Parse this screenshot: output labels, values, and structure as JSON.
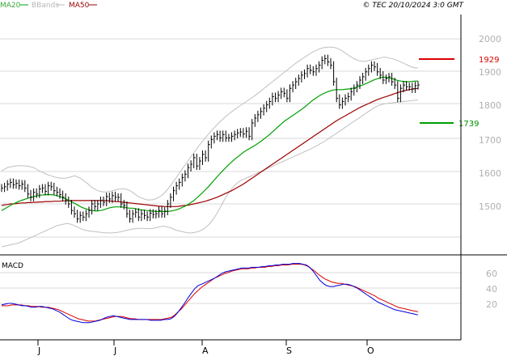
{
  "legend": [
    {
      "label": "MA20",
      "color": "#00a000"
    },
    {
      "label": "BBands",
      "color": "#b8b8b8"
    },
    {
      "label": "MA50",
      "color": "#9b0000"
    }
  ],
  "copyright": "© TEC 20/10/2024 3:0 GMT",
  "colors": {
    "price": "#000000",
    "ma20": "#00a000",
    "bbands": "#c0c0c0",
    "ma50": "#9b0000",
    "macd": "#0000dd",
    "signal": "#dd0000",
    "grid": "#d8d8d8",
    "resistance": "#dd0000",
    "support": "#00a000",
    "axis_text": "#b0b0b0",
    "resistance_text": "#dd0000",
    "support_text": "#009000"
  },
  "price_panel": {
    "yticks": [
      "2000",
      "1900",
      "1800",
      "1700",
      "1600",
      "1500"
    ],
    "resistance": {
      "value": 1929,
      "label": "1929"
    },
    "support": {
      "value": 1739,
      "label": "1739"
    }
  },
  "macd_panel": {
    "title": "MACD",
    "yticks": [
      "60",
      "40",
      "20"
    ]
  },
  "x_labels": [
    "J",
    "J",
    "A",
    "S",
    "O"
  ],
  "chart_data": [
    {
      "type": "ohlc",
      "ylim": [
        1400,
        2030
      ],
      "series": [
        {
          "name": "Price",
          "values": [
            1548,
            1552,
            1560,
            1565,
            1558,
            1562,
            1555,
            1560,
            1548,
            1530,
            1520,
            1535,
            1530,
            1545,
            1548,
            1538,
            1555,
            1552,
            1540,
            1535,
            1528,
            1520,
            1510,
            1500,
            1480,
            1470,
            1455,
            1465,
            1460,
            1470,
            1480,
            1500,
            1492,
            1500,
            1510,
            1505,
            1522,
            1515,
            1525,
            1520,
            1520,
            1500,
            1495,
            1470,
            1455,
            1470,
            1475,
            1460,
            1470,
            1465,
            1460,
            1472,
            1468,
            1470,
            1480,
            1470,
            1478,
            1500,
            1520,
            1540,
            1555,
            1565,
            1580,
            1590,
            1610,
            1620,
            1640,
            1615,
            1630,
            1650,
            1640,
            1680,
            1695,
            1705,
            1710,
            1700,
            1710,
            1700,
            1700,
            1705,
            1710,
            1715,
            1718,
            1712,
            1720,
            1705,
            1745,
            1760,
            1770,
            1780,
            1790,
            1800,
            1810,
            1825,
            1820,
            1830,
            1840,
            1835,
            1820,
            1850,
            1860,
            1870,
            1880,
            1890,
            1895,
            1910,
            1905,
            1900,
            1910,
            1920,
            1935,
            1940,
            1930,
            1920,
            1870,
            1820,
            1800,
            1810,
            1820,
            1825,
            1840,
            1850,
            1860,
            1875,
            1885,
            1900,
            1910,
            1920,
            1915,
            1900,
            1890,
            1875,
            1880,
            1885,
            1870,
            1860,
            1820,
            1850,
            1860,
            1855,
            1855,
            1848,
            1858,
            1860
          ]
        },
        {
          "name": "MA20",
          "values": [
            1480,
            1485,
            1490,
            1495,
            1500,
            1504,
            1508,
            1511,
            1514,
            1517,
            1520,
            1522,
            1524,
            1526,
            1527,
            1528,
            1528,
            1528,
            1527,
            1525,
            1522,
            1519,
            1515,
            1511,
            1506,
            1502,
            1497,
            1492,
            1488,
            1485,
            1482,
            1480,
            1479,
            1479,
            1480,
            1482,
            1485,
            1488,
            1490,
            1491,
            1491,
            1491,
            1490,
            1488,
            1487,
            1487,
            1485,
            1483,
            1482,
            1481,
            1480,
            1479,
            1478,
            1477,
            1477,
            1477,
            1477,
            1477,
            1478,
            1480,
            1482,
            1485,
            1489,
            1493,
            1498,
            1504,
            1510,
            1518,
            1526,
            1534,
            1543,
            1552,
            1562,
            1572,
            1582,
            1592,
            1601,
            1610,
            1619,
            1627,
            1635,
            1642,
            1649,
            1656,
            1662,
            1667,
            1672,
            1677,
            1683,
            1689,
            1696,
            1703,
            1710,
            1718,
            1726,
            1734,
            1742,
            1750,
            1756,
            1762,
            1768,
            1774,
            1780,
            1786,
            1793,
            1800,
            1808,
            1815,
            1821,
            1827,
            1832,
            1836,
            1840,
            1843,
            1845,
            1846,
            1846,
            1846,
            1847,
            1848,
            1849,
            1851,
            1854,
            1857,
            1860,
            1864,
            1868,
            1872,
            1876,
            1879,
            1882,
            1884,
            1883,
            1882,
            1880,
            1877,
            1874,
            1872,
            1871,
            1870,
            1870,
            1871,
            1872,
            1872
          ]
        },
        {
          "name": "MA50",
          "values": [
            1495,
            1497,
            1498,
            1500,
            1500,
            1501,
            1502,
            1503,
            1503,
            1504,
            1504,
            1505,
            1505,
            1506,
            1506,
            1507,
            1507,
            1507,
            1508,
            1508,
            1508,
            1509,
            1509,
            1510,
            1510,
            1510,
            1510,
            1510,
            1510,
            1510,
            1510,
            1510,
            1510,
            1510,
            1510,
            1510,
            1510,
            1509,
            1508,
            1507,
            1507,
            1506,
            1505,
            1504,
            1503,
            1502,
            1501,
            1500,
            1499,
            1498,
            1497,
            1496,
            1495,
            1494,
            1493,
            1493,
            1492,
            1492,
            1492,
            1492,
            1492,
            1493,
            1494,
            1495,
            1496,
            1498,
            1500,
            1502,
            1504,
            1506,
            1508,
            1511,
            1514,
            1517,
            1520,
            1524,
            1528,
            1532,
            1536,
            1540,
            1545,
            1550,
            1555,
            1560,
            1566,
            1572,
            1578,
            1584,
            1590,
            1596,
            1602,
            1608,
            1614,
            1620,
            1626,
            1632,
            1638,
            1644,
            1650,
            1656,
            1662,
            1668,
            1674,
            1680,
            1686,
            1692,
            1698,
            1704,
            1710,
            1716,
            1722,
            1728,
            1734,
            1740,
            1746,
            1752,
            1757,
            1762,
            1767,
            1772,
            1777,
            1782,
            1787,
            1792,
            1796,
            1800,
            1804,
            1808,
            1812,
            1816,
            1819,
            1822,
            1825,
            1828,
            1831,
            1834,
            1837,
            1840,
            1842,
            1844,
            1846,
            1848,
            1849,
            1850
          ]
        },
        {
          "name": "BBands upper",
          "values": [
            1600,
            1605,
            1610,
            1612,
            1614,
            1615,
            1616,
            1616,
            1615,
            1614,
            1612,
            1610,
            1605,
            1600,
            1596,
            1592,
            1588,
            1585,
            1582,
            1580,
            1578,
            1578,
            1578,
            1580,
            1582,
            1585,
            1582,
            1578,
            1572,
            1565,
            1558,
            1550,
            1545,
            1540,
            1538,
            1536,
            1536,
            1538,
            1540,
            1542,
            1544,
            1546,
            1546,
            1544,
            1540,
            1535,
            1528,
            1522,
            1518,
            1515,
            1512,
            1512,
            1513,
            1516,
            1520,
            1526,
            1534,
            1544,
            1556,
            1568,
            1580,
            1593,
            1606,
            1618,
            1630,
            1643,
            1655,
            1667,
            1679,
            1690,
            1701,
            1711,
            1721,
            1731,
            1740,
            1749,
            1757,
            1765,
            1772,
            1779,
            1786,
            1792,
            1798,
            1804,
            1810,
            1816,
            1822,
            1828,
            1835,
            1842,
            1849,
            1856,
            1863,
            1870,
            1877,
            1884,
            1891,
            1898,
            1905,
            1912,
            1919,
            1926,
            1932,
            1938,
            1944,
            1950,
            1956,
            1961,
            1965,
            1969,
            1972,
            1974,
            1975,
            1975,
            1974,
            1972,
            1968,
            1963,
            1957,
            1951,
            1945,
            1940,
            1936,
            1933,
            1932,
            1932,
            1934,
            1936,
            1938,
            1940,
            1942,
            1944,
            1944,
            1942,
            1940,
            1938,
            1934,
            1930,
            1926,
            1922,
            1918,
            1914,
            1912,
            1912
          ]
        },
        {
          "name": "BBands lower",
          "values": [
            1370,
            1372,
            1374,
            1376,
            1378,
            1380,
            1382,
            1386,
            1390,
            1394,
            1398,
            1402,
            1406,
            1410,
            1414,
            1418,
            1422,
            1426,
            1430,
            1434,
            1436,
            1438,
            1440,
            1440,
            1438,
            1434,
            1430,
            1426,
            1422,
            1420,
            1418,
            1417,
            1416,
            1415,
            1414,
            1413,
            1412,
            1412,
            1412,
            1413,
            1414,
            1416,
            1418,
            1420,
            1422,
            1424,
            1425,
            1426,
            1426,
            1426,
            1425,
            1425,
            1426,
            1428,
            1430,
            1432,
            1432,
            1430,
            1428,
            1424,
            1420,
            1418,
            1416,
            1414,
            1412,
            1412,
            1413,
            1415,
            1418,
            1422,
            1428,
            1436,
            1446,
            1458,
            1472,
            1488,
            1504,
            1520,
            1534,
            1546,
            1556,
            1564,
            1570,
            1574,
            1578,
            1582,
            1586,
            1590,
            1594,
            1598,
            1602,
            1606,
            1610,
            1614,
            1618,
            1622,
            1626,
            1630,
            1634,
            1638,
            1642,
            1646,
            1650,
            1654,
            1658,
            1662,
            1666,
            1670,
            1675,
            1680,
            1685,
            1690,
            1696,
            1702,
            1708,
            1714,
            1720,
            1726,
            1732,
            1738,
            1744,
            1750,
            1756,
            1762,
            1768,
            1774,
            1780,
            1786,
            1792,
            1796,
            1800,
            1802,
            1804,
            1805,
            1806,
            1807,
            1808,
            1809,
            1810,
            1811,
            1812,
            1813,
            1814,
            1815
          ]
        }
      ]
    },
    {
      "type": "line",
      "ylim": [
        -20,
        80
      ],
      "series": [
        {
          "name": "MACD",
          "values": [
            18,
            19,
            20,
            20,
            19,
            18,
            17,
            17,
            16,
            15,
            15,
            16,
            16,
            15,
            14,
            13,
            11,
            9,
            6,
            3,
            0,
            -2,
            -3,
            -4,
            -5,
            -5,
            -5,
            -4,
            -3,
            -2,
            0,
            2,
            3,
            4,
            3,
            2,
            1,
            0,
            -1,
            -1,
            -1,
            -1,
            -1,
            -1,
            -2,
            -2,
            -2,
            -2,
            -1,
            -1,
            0,
            3,
            8,
            14,
            20,
            27,
            33,
            39,
            43,
            45,
            47,
            49,
            51,
            53,
            56,
            59,
            61,
            62,
            63,
            64,
            65,
            66,
            66,
            66,
            67,
            67,
            67,
            68,
            68,
            69,
            69,
            70,
            70,
            71,
            71,
            71,
            72,
            72,
            72,
            71,
            70,
            67,
            62,
            56,
            50,
            46,
            43,
            42,
            42,
            43,
            44,
            45,
            45,
            44,
            42,
            40,
            37,
            34,
            31,
            28,
            25,
            22,
            20,
            18,
            16,
            14,
            12,
            11,
            10,
            9,
            8,
            7,
            6,
            5
          ]
        },
        {
          "name": "Signal",
          "values": [
            17,
            17,
            17,
            18,
            18,
            18,
            18,
            17,
            17,
            16,
            16,
            16,
            15,
            15,
            15,
            14,
            13,
            12,
            10,
            8,
            6,
            4,
            2,
            0,
            -1,
            -2,
            -3,
            -3,
            -3,
            -2,
            -1,
            0,
            1,
            2,
            3,
            3,
            3,
            2,
            1,
            0,
            0,
            -1,
            -1,
            -1,
            -1,
            -1,
            -1,
            -1,
            -1,
            0,
            1,
            2,
            5,
            9,
            13,
            18,
            23,
            28,
            33,
            37,
            41,
            44,
            47,
            50,
            53,
            55,
            57,
            59,
            60,
            62,
            63,
            64,
            65,
            65,
            65,
            66,
            66,
            67,
            67,
            67,
            68,
            68,
            69,
            69,
            70,
            70,
            70,
            71,
            71,
            71,
            71,
            70,
            68,
            65,
            62,
            58,
            55,
            52,
            50,
            48,
            47,
            46,
            46,
            45,
            44,
            43,
            42,
            40,
            38,
            36,
            34,
            32,
            30,
            27,
            25,
            23,
            21,
            19,
            17,
            15,
            14,
            13,
            12,
            11,
            10,
            9
          ]
        }
      ]
    }
  ]
}
